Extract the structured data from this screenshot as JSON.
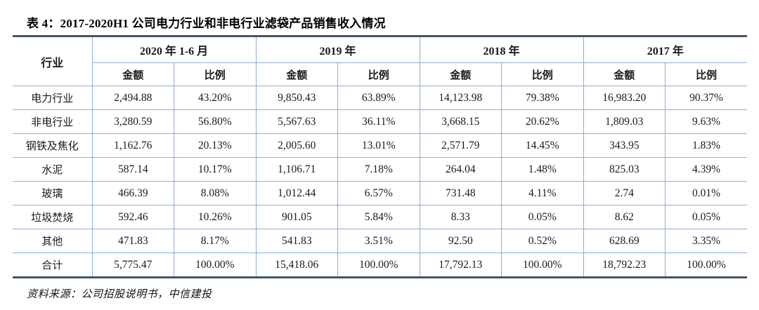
{
  "title": "表 4：2017-2020H1 公司电力行业和非电行业滤袋产品销售收入情况",
  "source": "资料来源：公司招股说明书，中信建投",
  "colors": {
    "rule_dark": "#44546A",
    "grid_blue": "#8FAADC",
    "text": "#1a1a1a",
    "background": "#ffffff"
  },
  "table": {
    "industry_header": "行业",
    "groups": [
      "2020 年 1-6 月",
      "2019 年",
      "2018 年",
      "2017 年"
    ],
    "sub_amount": "金额",
    "sub_ratio": "比例",
    "rows": [
      {
        "label": "电力行业",
        "cells": [
          "2,494.88",
          "43.20%",
          "9,850.43",
          "63.89%",
          "14,123.98",
          "79.38%",
          "16,983.20",
          "90.37%"
        ]
      },
      {
        "label": "非电行业",
        "cells": [
          "3,280.59",
          "56.80%",
          "5,567.63",
          "36.11%",
          "3,668.15",
          "20.62%",
          "1,809.03",
          "9.63%"
        ]
      },
      {
        "label": "钢铁及焦化",
        "cells": [
          "1,162.76",
          "20.13%",
          "2,005.60",
          "13.01%",
          "2,571.79",
          "14.45%",
          "343.95",
          "1.83%"
        ]
      },
      {
        "label": "水泥",
        "cells": [
          "587.14",
          "10.17%",
          "1,106.71",
          "7.18%",
          "264.04",
          "1.48%",
          "825.03",
          "4.39%"
        ]
      },
      {
        "label": "玻璃",
        "cells": [
          "466.39",
          "8.08%",
          "1,012.44",
          "6.57%",
          "731.48",
          "4.11%",
          "2.74",
          "0.01%"
        ]
      },
      {
        "label": "垃圾焚烧",
        "cells": [
          "592.46",
          "10.26%",
          "901.05",
          "5.84%",
          "8.33",
          "0.05%",
          "8.62",
          "0.05%"
        ]
      },
      {
        "label": "其他",
        "cells": [
          "471.83",
          "8.17%",
          "541.83",
          "3.51%",
          "92.50",
          "0.52%",
          "628.69",
          "3.35%"
        ]
      },
      {
        "label": "合计",
        "cells": [
          "5,775.47",
          "100.00%",
          "15,418.06",
          "100.00%",
          "17,792.13",
          "100.00%",
          "18,792.23",
          "100.00%"
        ]
      }
    ]
  }
}
